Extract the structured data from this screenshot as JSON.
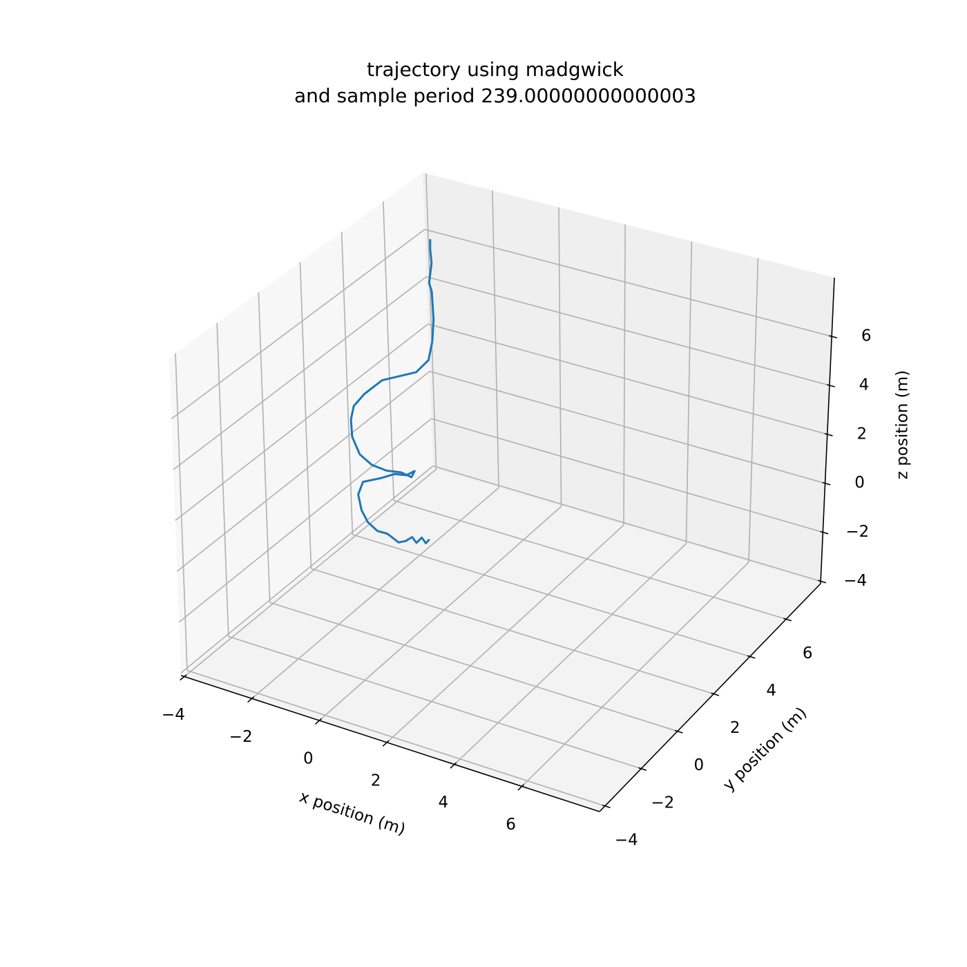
{
  "chart_data": {
    "type": "line3d",
    "title": "trajectory using madgwick\nand sample period 239.00000000000003",
    "xlabel": "x position (m)",
    "ylabel": "y position (m)",
    "zlabel": "z position (m)",
    "xlim": [
      -4.1,
      8.3
    ],
    "ylim": [
      -4.3,
      7.9
    ],
    "zlim": [
      -4.1,
      8.4
    ],
    "xticks": [
      {
        "value": -4,
        "label": "−4"
      },
      {
        "value": -2,
        "label": "−2"
      },
      0,
      2,
      4,
      6
    ],
    "yticks": [
      {
        "value": -4,
        "label": "−4"
      },
      {
        "value": -2,
        "label": "−2"
      },
      0,
      2,
      4,
      6
    ],
    "zticks": [
      {
        "value": -4,
        "label": "−4"
      },
      {
        "value": -2,
        "label": "−2"
      },
      0,
      2,
      4,
      6
    ],
    "grid": true,
    "series": [
      {
        "color": "#1f77b4",
        "x": [
          0.58,
          0.6,
          0.36,
          0.38,
          0.13,
          0.09,
          -0.03,
          -0.3,
          -0.46,
          -0.56,
          -0.6,
          -0.6,
          -0.48,
          -0.05,
          0.22,
          0.59,
          0.73,
          0.83,
          0.61,
          0.39,
          0.13,
          -0.07,
          -0.21,
          -0.28,
          -0.3,
          -0.11,
          0.19,
          0.94,
          1.09,
          0.86,
          0.29,
          -0.52,
          -0.83,
          -1.3,
          -1.75,
          -1.98
        ],
        "y": [
          0.36,
          0.14,
          0.34,
          0.04,
          0.24,
          -0.02,
          -0.17,
          -0.27,
          -0.5,
          -0.8,
          -1.03,
          -1.18,
          -1.13,
          -0.99,
          -0.74,
          -0.77,
          -0.59,
          -0.92,
          -1.07,
          -1.41,
          -1.69,
          -1.95,
          -2.07,
          -2.0,
          -1.82,
          -1.61,
          -1.23,
          -0.81,
          -0.45,
          0.14,
          1.18,
          2.46,
          2.85,
          3.76,
          4.44,
          4.82
        ],
        "z": [
          0,
          0,
          0,
          0,
          0,
          0,
          0,
          0.3,
          0.5,
          1.0,
          1.6,
          2.3,
          2.8,
          3.0,
          3.1,
          3.2,
          3.3,
          3.3,
          3.5,
          3.7,
          4.0,
          4.5,
          5.2,
          5.8,
          6.2,
          6.6,
          7.0,
          7.3,
          7.6,
          7.9,
          8.0,
          8.1,
          8.1,
          8.2,
          8.2,
          8.3
        ]
      }
    ]
  }
}
